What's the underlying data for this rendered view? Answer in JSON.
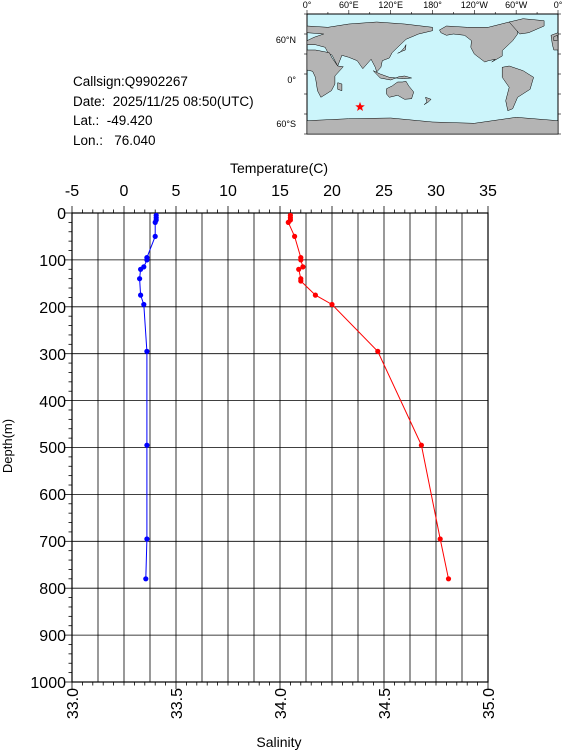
{
  "info": {
    "callsign": "Callsign:Q9902267",
    "date": "Date:  2025/11/25 08:50(UTC)",
    "lat": "Lat.:  -49.420",
    "lon": "Lon.:   76.040"
  },
  "map": {
    "top_ticks": [
      "0°",
      "60°E",
      "120°E",
      "180°",
      "120°W",
      "60°W",
      "0°"
    ],
    "left_ticks": [
      "60°N",
      "0°",
      "60°S"
    ],
    "ocean_color": "#ccf5fb",
    "land_color": "#b4b4b4",
    "marker": {
      "lat": -49.42,
      "lon": 76.04,
      "color": "#ff0000",
      "icon": "star-icon"
    }
  },
  "chart_data": {
    "type": "line",
    "ylabel": "Depth(m)",
    "ylim": [
      1000,
      0
    ],
    "yticks": [
      "0",
      "100",
      "200",
      "300",
      "400",
      "500",
      "600",
      "700",
      "800",
      "900",
      "1000"
    ],
    "temperature_axis": {
      "label": "Temperature(C)",
      "lim": [
        -5,
        35
      ],
      "ticks": [
        "-5",
        "0",
        "5",
        "10",
        "15",
        "20",
        "25",
        "30",
        "35"
      ]
    },
    "salinity_axis": {
      "label": "Salinity",
      "lim": [
        33.0,
        35.0
      ],
      "ticks": [
        "33.0",
        "33.5",
        "34.0",
        "34.5",
        "35.0"
      ]
    },
    "grid": true,
    "series": [
      {
        "axis": "temperature",
        "color": "#0000ff",
        "depth": [
          5,
          10,
          15,
          20,
          50,
          95,
          100,
          115,
          120,
          140,
          175,
          195,
          295,
          495,
          695,
          780
        ],
        "values": [
          3.1,
          3.1,
          3.1,
          3.0,
          3.0,
          2.2,
          2.2,
          1.9,
          1.6,
          1.5,
          1.6,
          1.9,
          2.2,
          2.2,
          2.2,
          2.1
        ]
      },
      {
        "axis": "salinity",
        "color": "#ff0000",
        "depth": [
          5,
          10,
          15,
          20,
          50,
          95,
          100,
          115,
          120,
          140,
          145,
          175,
          195,
          295,
          495,
          695,
          780
        ],
        "values": [
          34.05,
          34.05,
          34.05,
          34.04,
          34.07,
          34.1,
          34.1,
          34.11,
          34.09,
          34.1,
          34.1,
          34.17,
          34.25,
          34.47,
          34.68,
          34.77,
          34.81
        ]
      }
    ]
  }
}
